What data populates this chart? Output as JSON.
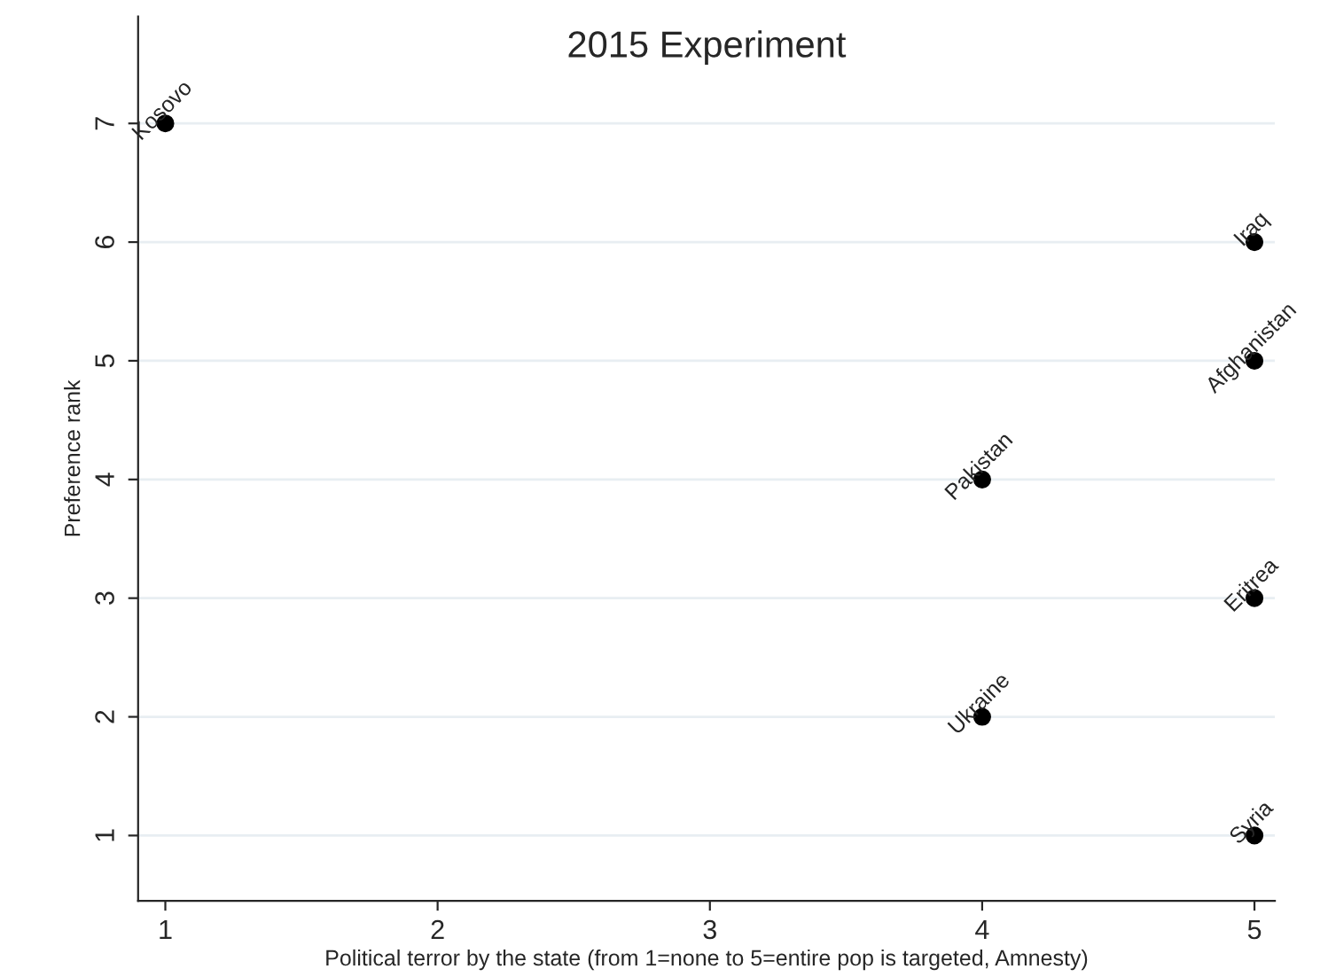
{
  "chart_data": {
    "type": "scatter",
    "title": "2015 Experiment",
    "xlabel": "Political terror by the state (from 1=none to 5=entire pop is targeted, Amnesty)",
    "ylabel": "Preference rank",
    "x": [
      1,
      5,
      5,
      4,
      5,
      4,
      5
    ],
    "series": [
      {
        "color": "#000000",
        "values": [
          7,
          6,
          5,
          4,
          3,
          2,
          1
        ]
      }
    ],
    "annotations": [
      {
        "text": "Kosovo",
        "x": 1,
        "y": 7
      },
      {
        "text": "Iraq",
        "x": 5,
        "y": 6
      },
      {
        "text": "Afghanistan",
        "x": 5,
        "y": 5
      },
      {
        "text": "Pakistan",
        "x": 4,
        "y": 4
      },
      {
        "text": "Eritrea",
        "x": 5,
        "y": 3
      },
      {
        "text": "Ukraine",
        "x": 4,
        "y": 2
      },
      {
        "text": "Syria",
        "x": 5,
        "y": 1
      }
    ],
    "xlim": [
      0.9,
      5.075
    ],
    "ylim": [
      0.45,
      7.9
    ],
    "xticks": [
      1,
      2,
      3,
      4,
      5
    ],
    "yticks": [
      1,
      2,
      3,
      4,
      5,
      6,
      7
    ],
    "grid": "y",
    "marker": "circle",
    "legend": false
  }
}
